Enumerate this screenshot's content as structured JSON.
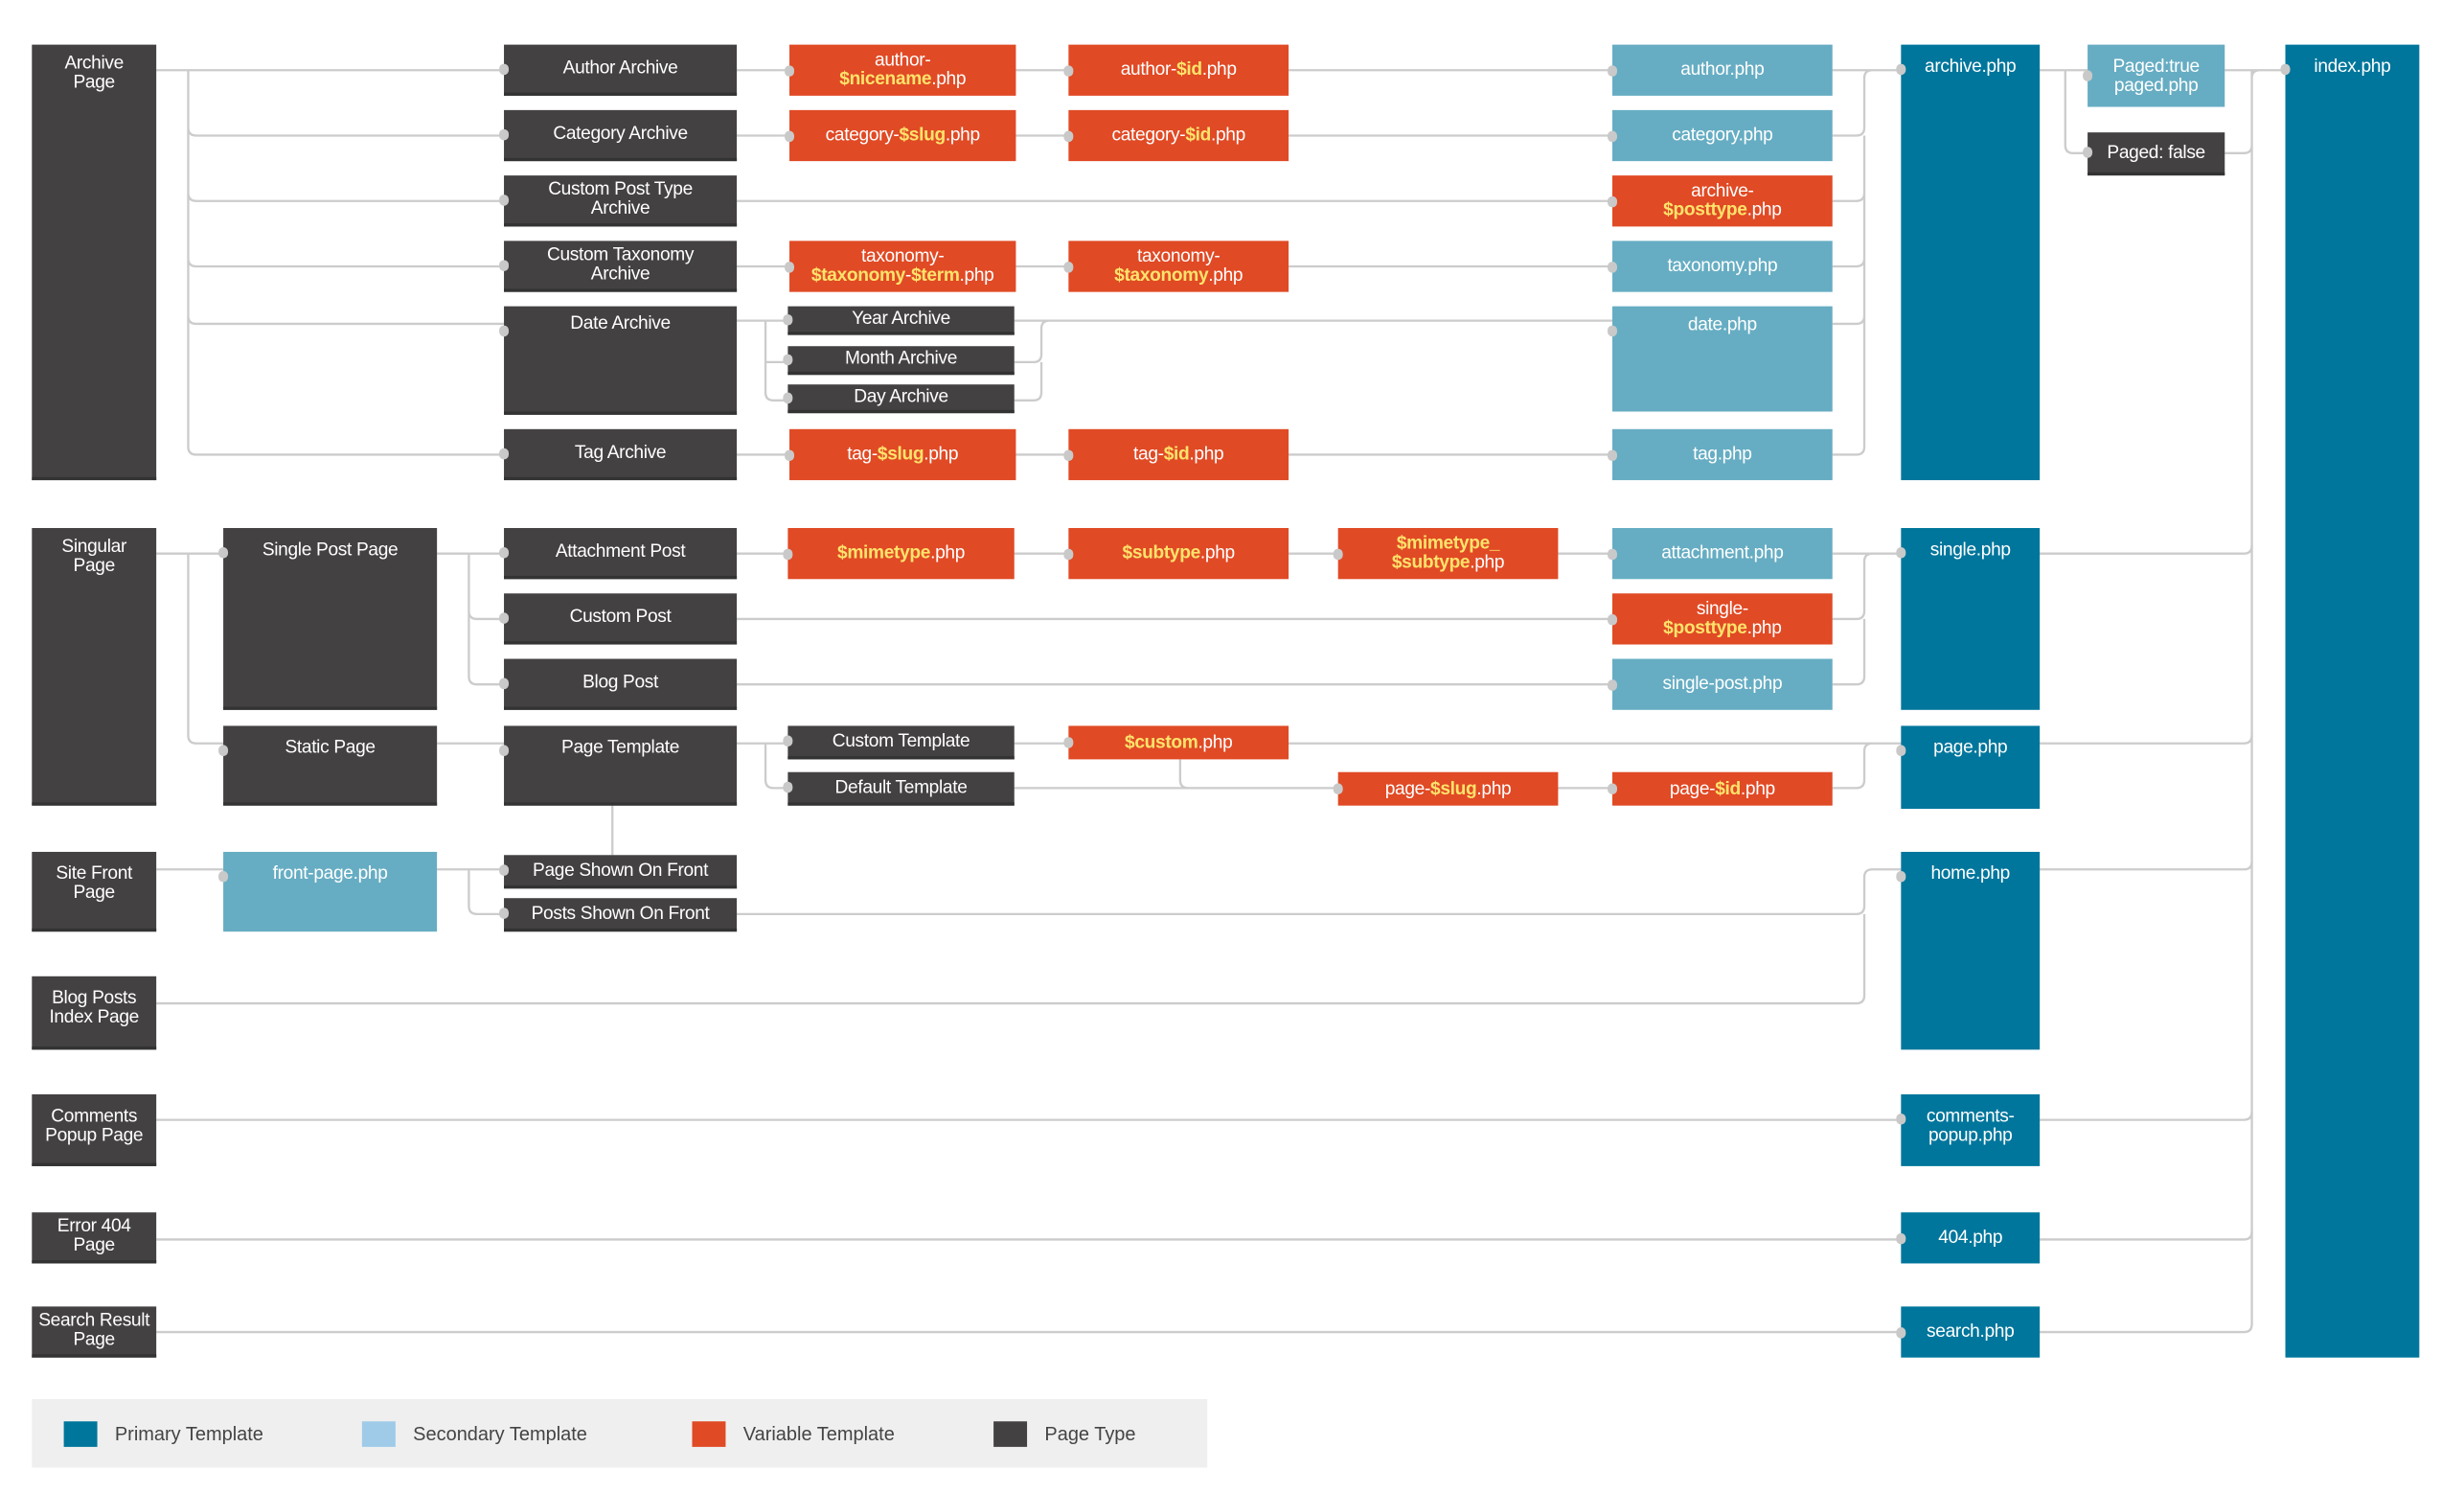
{
  "colors": {
    "primary": "#00769c",
    "secondary": "#66adc3",
    "variable": "#e04a25",
    "page_type": "#444142",
    "variable_text": "#ffe36b",
    "connector": "#cccccc"
  },
  "nodes": {
    "archive_page": "Archive\nPage",
    "author_archive": "Author Archive",
    "category_archive": "Category Archive",
    "cpt_archive": "Custom Post Type\nArchive",
    "tax_archive": "Custom Taxonomy\nArchive",
    "date_archive": "Date Archive",
    "year_archive": "Year Archive",
    "month_archive": "Month Archive",
    "day_archive": "Day Archive",
    "tag_archive": "Tag Archive",
    "author_nicename": "author-\n$nicename.php",
    "author_id": "author-$id.php",
    "category_slug": "category-$slug.php",
    "category_id": "category-$id.php",
    "taxonomy_term": "taxonomy-\n$taxonomy-$term.php",
    "taxonomy_tax": "taxonomy-\n$taxonomy.php",
    "tag_slug": "tag-$slug.php",
    "tag_id": "tag-$id.php",
    "author_php": "author.php",
    "category_php": "category.php",
    "archive_posttype": "archive-\n$posttype.php",
    "taxonomy_php": "taxonomy.php",
    "date_php": "date.php",
    "tag_php": "tag.php",
    "archive_php": "archive.php",
    "paged_true": "Paged:true\npaged.php",
    "paged_false": "Paged: false",
    "index_php": "index.php",
    "singular_page": "Singular\nPage",
    "single_post_page": "Single Post Page",
    "attachment_post": "Attachment Post",
    "custom_post": "Custom Post",
    "blog_post": "Blog Post",
    "mimetype_php": "$mimetype.php",
    "subtype_php": "$subtype.php",
    "mimetype_subtype_php": "$mimetype_\n$subtype.php",
    "attachment_php": "attachment.php",
    "single_posttype": "single-\n$posttype.php",
    "single_post_php": "single-post.php",
    "single_php": "single.php",
    "static_page": "Static Page",
    "page_template": "Page Template",
    "custom_template": "Custom Template",
    "default_template": "Default Template",
    "custom_php": "$custom.php",
    "page_slug": "page-$slug.php",
    "page_id": "page-$id.php",
    "page_php": "page.php",
    "site_front_page": "Site Front\nPage",
    "front_page_php": "front-page.php",
    "page_on_front": "Page Shown On Front",
    "posts_on_front": "Posts Shown On Front",
    "home_php": "home.php",
    "blog_posts_index": "Blog Posts\nIndex Page",
    "comments_popup_page": "Comments\nPopup Page",
    "comments_popup_php": "comments-\npopup.php",
    "error_404_page": "Error 404\nPage",
    "php_404": "404.php",
    "search_result_page": "Search Result\nPage",
    "search_php": "search.php"
  },
  "legend": [
    {
      "label": "Primary Template",
      "color": "#00769c"
    },
    {
      "label": "Secondary Template",
      "color": "#9fcbe9"
    },
    {
      "label": "Variable Template",
      "color": "#e04a25"
    },
    {
      "label": "Page Type",
      "color": "#444142"
    }
  ]
}
